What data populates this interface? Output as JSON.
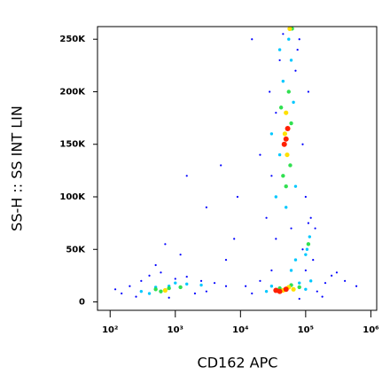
{
  "chart_data": {
    "type": "scatter",
    "xlabel": "CD162 APC",
    "ylabel": "SS-H :: SS INT LIN",
    "xscale": "log",
    "xlim": [
      64,
      1230000
    ],
    "ylim": [
      -8000,
      262000
    ],
    "xticks": [
      {
        "value": 100,
        "label": "10²"
      },
      {
        "value": 1000,
        "label": "10³"
      },
      {
        "value": 10000,
        "label": "10⁴"
      },
      {
        "value": 100000,
        "label": "10⁵"
      },
      {
        "value": 1000000,
        "label": "10⁶"
      }
    ],
    "yticks": [
      0,
      {
        "value": 50000,
        "label": "50K"
      },
      {
        "value": 100000,
        "label": "100K"
      },
      {
        "value": 150000,
        "label": "150K"
      },
      {
        "value": 200000,
        "label": "200K"
      },
      {
        "value": 250000,
        "label": "250K"
      }
    ],
    "series": [
      {
        "color": "#0000ff",
        "x": [
          150,
          200,
          300,
          250,
          400,
          600,
          1000,
          1500,
          2500,
          4000,
          6000,
          3000,
          800,
          120,
          500,
          1200,
          2000,
          700,
          15000,
          20000,
          30000,
          150000,
          200000,
          250000,
          400000,
          600000,
          12000,
          100000,
          80000,
          25000,
          30000,
          35000,
          40000,
          70000,
          90000,
          100000,
          80000,
          28000,
          60000,
          110000,
          20000,
          45000,
          120000,
          130000,
          140000,
          90000,
          110000,
          5000,
          8000,
          3000,
          1500,
          9000,
          6000,
          15000,
          180000,
          300000,
          35000,
          75000
        ],
        "values": [
          8000,
          15000,
          20000,
          5000,
          25000,
          28000,
          22000,
          24000,
          20000,
          18000,
          15000,
          10000,
          4000,
          12000,
          35000,
          45000,
          8000,
          55000,
          8000,
          20000,
          30000,
          10000,
          18000,
          25000,
          20000,
          15000,
          15000,
          30000,
          3000,
          80000,
          120000,
          180000,
          230000,
          220000,
          150000,
          100000,
          250000,
          200000,
          70000,
          200000,
          140000,
          255000,
          80000,
          40000,
          70000,
          50000,
          75000,
          130000,
          60000,
          90000,
          120000,
          100000,
          40000,
          250000,
          5000,
          28000,
          60000,
          240000
        ]
      },
      {
        "color": "#00c8ff",
        "x": [
          300,
          500,
          800,
          1500,
          2500,
          400,
          1000,
          30000,
          80000,
          100000,
          25000,
          120000,
          35000,
          45000,
          60000,
          70000,
          40000,
          65000,
          50000,
          105000,
          115000,
          100000,
          70000,
          60000,
          40000,
          30000,
          55000
        ],
        "values": [
          10000,
          14000,
          15000,
          17000,
          16000,
          8000,
          18000,
          15000,
          18000,
          12000,
          10000,
          20000,
          100000,
          210000,
          230000,
          110000,
          140000,
          190000,
          90000,
          50000,
          62000,
          45000,
          40000,
          30000,
          240000,
          160000,
          250000
        ]
      },
      {
        "color": "#30e050",
        "x": [
          500,
          800,
          1200,
          600,
          40000,
          60000,
          80000,
          45000,
          55000,
          50000,
          60000,
          110000,
          42000,
          58000,
          62000
        ],
        "values": [
          12000,
          13000,
          14000,
          10000,
          13000,
          16000,
          14000,
          120000,
          200000,
          110000,
          170000,
          55000,
          185000,
          130000,
          260000
        ]
      },
      {
        "color": "#ffe000",
        "x": [
          700,
          45000,
          55000,
          50000,
          52000,
          48000,
          65000,
          57000
        ],
        "values": [
          11000,
          11000,
          14000,
          180000,
          140000,
          160000,
          12000,
          260000
        ]
      },
      {
        "color": "#ff2000",
        "x": [
          40000,
          50000,
          50000,
          53000,
          47000,
          35000
        ],
        "values": [
          10000,
          12000,
          155000,
          165000,
          150000,
          11000
        ]
      }
    ]
  }
}
